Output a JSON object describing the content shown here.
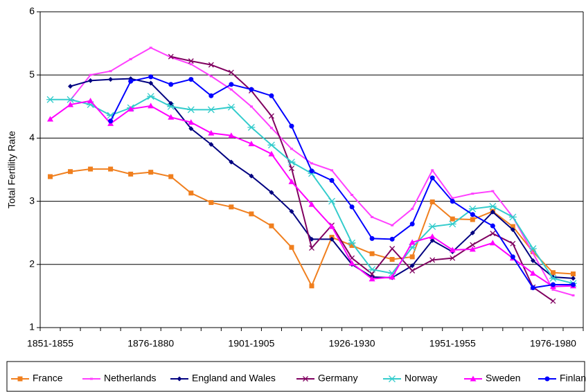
{
  "chart_data": {
    "type": "line",
    "y_label": "Total Fertility Rate",
    "categories": [
      "1851-1855",
      null,
      null,
      null,
      null,
      "1876-1880",
      null,
      null,
      null,
      null,
      "1901-1905",
      null,
      null,
      null,
      null,
      "1926-1930",
      null,
      null,
      null,
      null,
      "1951-1955",
      null,
      null,
      null,
      null,
      "1976-1980",
      null
    ],
    "ylim": [
      1,
      6
    ],
    "yticks": [
      1,
      2,
      3,
      4,
      5,
      6
    ],
    "grid": true,
    "legend": "bottom",
    "series": [
      {
        "name": "France",
        "color": "#f07f1e",
        "marker": "square",
        "values": [
          3.39,
          3.47,
          3.51,
          3.51,
          3.43,
          3.46,
          3.39,
          3.13,
          2.98,
          2.91,
          2.8,
          2.61,
          2.27,
          1.66,
          2.43,
          2.3,
          2.17,
          2.08,
          2.12,
          2.99,
          2.72,
          2.71,
          2.84,
          2.6,
          2.2,
          1.87,
          1.85
        ]
      },
      {
        "name": "Netherlands",
        "color": "#ff3fff",
        "marker": "dash",
        "values": [
          null,
          4.6,
          5.0,
          5.06,
          5.25,
          5.43,
          5.28,
          5.17,
          4.98,
          4.77,
          4.5,
          4.16,
          3.83,
          3.6,
          3.49,
          3.1,
          2.75,
          2.62,
          2.88,
          3.49,
          3.05,
          3.12,
          3.16,
          2.75,
          2.18,
          1.6,
          1.51
        ]
      },
      {
        "name": "England and Wales",
        "color": "#000080",
        "marker": "diamond",
        "values": [
          null,
          4.82,
          4.91,
          4.93,
          4.94,
          4.87,
          4.55,
          4.15,
          3.9,
          3.62,
          3.4,
          3.14,
          2.84,
          2.4,
          2.4,
          2.0,
          1.8,
          1.79,
          1.98,
          2.38,
          2.2,
          2.5,
          2.83,
          2.55,
          2.06,
          1.8,
          1.78
        ]
      },
      {
        "name": "Germany",
        "color": "#800060",
        "marker": "x",
        "values": [
          null,
          null,
          null,
          null,
          null,
          null,
          5.29,
          5.22,
          5.16,
          5.04,
          4.75,
          4.35,
          3.52,
          2.26,
          2.62,
          2.1,
          1.85,
          2.25,
          1.9,
          2.07,
          2.1,
          2.31,
          2.49,
          2.33,
          1.64,
          1.42,
          null
        ]
      },
      {
        "name": "Norway",
        "color": "#33cccc",
        "marker": "asterisk",
        "values": [
          4.61,
          4.61,
          4.53,
          4.36,
          4.48,
          4.66,
          4.5,
          4.45,
          4.45,
          4.49,
          4.17,
          3.89,
          3.62,
          3.44,
          3.0,
          2.34,
          1.92,
          1.86,
          2.27,
          2.6,
          2.64,
          2.88,
          2.92,
          2.75,
          2.25,
          1.78,
          1.7
        ]
      },
      {
        "name": "Sweden",
        "color": "#ff00ff",
        "marker": "triangle",
        "values": [
          4.3,
          4.53,
          4.59,
          4.23,
          4.46,
          4.51,
          4.33,
          4.25,
          4.08,
          4.04,
          3.91,
          3.75,
          3.31,
          2.95,
          2.6,
          2.02,
          1.77,
          1.8,
          2.35,
          2.44,
          2.23,
          2.24,
          2.34,
          2.1,
          1.86,
          1.65,
          1.66
        ]
      },
      {
        "name": "Finland",
        "color": "#0000ff",
        "marker": "circle",
        "values": [
          null,
          null,
          null,
          4.27,
          4.9,
          4.97,
          4.85,
          4.93,
          4.67,
          4.85,
          4.77,
          4.67,
          4.19,
          3.48,
          3.33,
          2.91,
          2.41,
          2.4,
          2.64,
          3.37,
          3.0,
          2.79,
          2.61,
          2.12,
          1.63,
          1.68,
          1.68
        ]
      }
    ]
  }
}
